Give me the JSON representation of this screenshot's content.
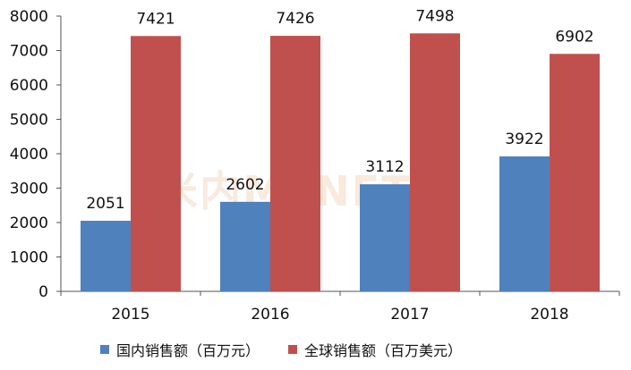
{
  "chart_data": {
    "type": "bar",
    "categories": [
      "2015",
      "2016",
      "2017",
      "2018"
    ],
    "series": [
      {
        "name": "国内销售额（百万元）",
        "color": "#4F81BD",
        "values": [
          2051,
          2602,
          3112,
          3922
        ]
      },
      {
        "name": "全球销售额（百万美元）",
        "color": "#C0504D",
        "values": [
          7421,
          7426,
          7498,
          6902
        ]
      }
    ],
    "ylim": [
      0,
      8000
    ],
    "yticks": [
      0,
      1000,
      2000,
      3000,
      4000,
      5000,
      6000,
      7000,
      8000
    ],
    "grid": false,
    "legend_position": "bottom"
  },
  "watermark": "米内MENET"
}
